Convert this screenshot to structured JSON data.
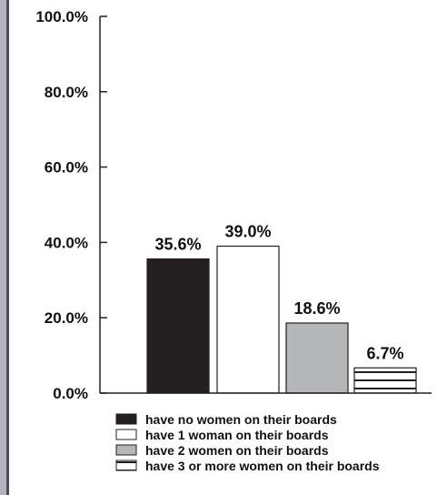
{
  "chart_data": {
    "type": "bar",
    "title": "",
    "xlabel": "",
    "ylabel": "",
    "ylim": [
      0,
      100
    ],
    "yticks": [
      0,
      20,
      40,
      60,
      80,
      100
    ],
    "ytick_labels": [
      "0.0%",
      "20.0%",
      "40.0%",
      "60.0%",
      "80.0%",
      "100.0%"
    ],
    "categories": [
      "have no women on their boards",
      "have 1 woman on their boards",
      "have 2 women on their boards",
      "have 3 or more women on their boards"
    ],
    "values": [
      35.6,
      39.0,
      18.6,
      6.7
    ],
    "value_labels": [
      "35.6%",
      "39.0%",
      "18.6%",
      "6.7%"
    ],
    "colors": [
      "#231f20",
      "#ffffff",
      "#b5b6b8",
      "#ffffff"
    ],
    "patterns": [
      "solid",
      "solid",
      "solid",
      "horizontal-stripes"
    ],
    "grid": false,
    "legend_position": "bottom"
  }
}
